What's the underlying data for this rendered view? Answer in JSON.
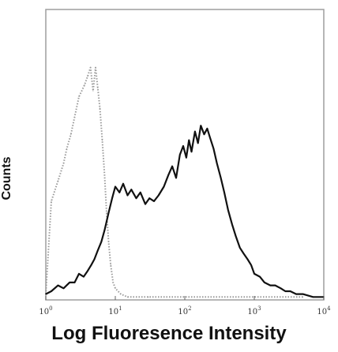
{
  "chart_data": {
    "type": "line",
    "title": "",
    "xlabel": "Log Fluoresence Intensity",
    "ylabel": "Counts",
    "xscale": "log",
    "xlim": [
      1,
      10000
    ],
    "ylim": [
      0,
      100
    ],
    "grid": false,
    "x_ticks": [
      {
        "value": 1,
        "label": "10",
        "sup": "0"
      },
      {
        "value": 10,
        "label": "10",
        "sup": "1"
      },
      {
        "value": 100,
        "label": "10",
        "sup": "2"
      },
      {
        "value": 1000,
        "label": "10",
        "sup": "3"
      },
      {
        "value": 10000,
        "label": "10",
        "sup": "4"
      }
    ],
    "series": [
      {
        "style": "dotted",
        "color": "#9a9a9a",
        "x": [
          1.0,
          1.2,
          1.5,
          1.8,
          2.0,
          2.3,
          2.6,
          3.0,
          3.3,
          3.6,
          4.0,
          4.4,
          4.8,
          5.2,
          5.6,
          6.0,
          6.5,
          7.0,
          7.5,
          8.0,
          8.6,
          9.3,
          10.0,
          12.0,
          15.0,
          20.0,
          30.0,
          60.0,
          200.0,
          1000.0,
          5000.0
        ],
        "y": [
          2,
          34,
          41,
          47,
          52,
          57,
          63,
          70,
          72,
          74,
          77,
          80,
          72,
          80,
          73,
          66,
          55,
          43,
          30,
          20,
          12,
          6,
          4,
          2,
          1,
          1,
          1,
          1,
          1,
          1,
          1
        ]
      },
      {
        "style": "solid",
        "color": "#111111",
        "x": [
          1.0,
          1.2,
          1.5,
          1.8,
          2.2,
          2.6,
          3.0,
          3.5,
          4.0,
          4.5,
          5.0,
          5.6,
          6.3,
          7.0,
          8.0,
          9.0,
          10.0,
          11.5,
          13.0,
          15.0,
          17.0,
          20.0,
          23.0,
          27.0,
          31.0,
          36.0,
          42.0,
          50.0,
          58.0,
          66.0,
          75.0,
          85.0,
          95.0,
          105.0,
          115.0,
          125.0,
          140.0,
          155.0,
          170.0,
          190.0,
          210.0,
          230.0,
          260.0,
          290.0,
          330.0,
          370.0,
          420.0,
          480.0,
          540.0,
          620.0,
          700.0,
          800.0,
          900.0,
          1000.0,
          1200.0,
          1400.0,
          1700.0,
          2000.0,
          2400.0,
          2800.0,
          3300.0,
          4000.0,
          5000.0,
          7000.0,
          10000.0
        ],
        "y": [
          2,
          3,
          5,
          4,
          6,
          6,
          9,
          8,
          10,
          12,
          14,
          17,
          20,
          24,
          30,
          35,
          39,
          37,
          40,
          36,
          38,
          35,
          37,
          33,
          35,
          34,
          36,
          39,
          43,
          46,
          42,
          50,
          53,
          49,
          55,
          51,
          58,
          54,
          60,
          57,
          59,
          56,
          52,
          47,
          42,
          37,
          31,
          26,
          22,
          18,
          16,
          14,
          12,
          9,
          8,
          6,
          5,
          5,
          4,
          3,
          3,
          2,
          2,
          1,
          1
        ]
      }
    ]
  }
}
